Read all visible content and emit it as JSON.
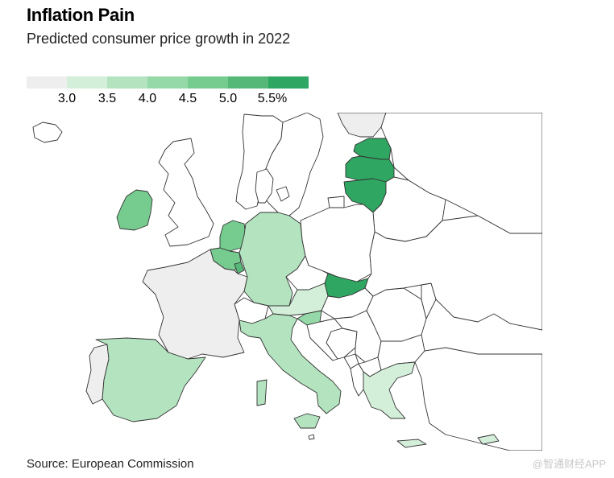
{
  "header": {
    "title": "Inflation Pain",
    "subtitle": "Predicted consumer price growth in 2022"
  },
  "legend": {
    "bins": [
      {
        "color": "#eeeeee",
        "label": ""
      },
      {
        "color": "#d3eed9",
        "label": "3.0"
      },
      {
        "color": "#b3e3bf",
        "label": "3.5"
      },
      {
        "color": "#96d9a8",
        "label": "4.0"
      },
      {
        "color": "#76cb8f",
        "label": "4.5"
      },
      {
        "color": "#56b878",
        "label": "5.0"
      },
      {
        "color": "#2fa661",
        "label": "5.5%"
      }
    ]
  },
  "map": {
    "no_data_color": "#ffffff",
    "countries": [
      {
        "name": "Iceland",
        "bin": null
      },
      {
        "name": "Norway",
        "bin": null
      },
      {
        "name": "Sweden",
        "bin": null
      },
      {
        "name": "Finland",
        "bin": 0
      },
      {
        "name": "Estonia",
        "bin": 6
      },
      {
        "name": "Latvia",
        "bin": 6
      },
      {
        "name": "Lithuania",
        "bin": 6
      },
      {
        "name": "United Kingdom",
        "bin": null
      },
      {
        "name": "Ireland",
        "bin": 4
      },
      {
        "name": "Netherlands",
        "bin": 4
      },
      {
        "name": "Belgium",
        "bin": 4
      },
      {
        "name": "Luxembourg",
        "bin": 5
      },
      {
        "name": "France",
        "bin": 0
      },
      {
        "name": "Germany",
        "bin": 2
      },
      {
        "name": "Denmark",
        "bin": null
      },
      {
        "name": "Poland",
        "bin": null
      },
      {
        "name": "Czechia",
        "bin": null
      },
      {
        "name": "Slovakia",
        "bin": 6
      },
      {
        "name": "Austria",
        "bin": 1
      },
      {
        "name": "Switzerland",
        "bin": null
      },
      {
        "name": "Hungary",
        "bin": null
      },
      {
        "name": "Slovenia",
        "bin": 3
      },
      {
        "name": "Croatia",
        "bin": null
      },
      {
        "name": "Italy",
        "bin": 2
      },
      {
        "name": "Spain",
        "bin": 2
      },
      {
        "name": "Portugal",
        "bin": 0
      },
      {
        "name": "Romania",
        "bin": null
      },
      {
        "name": "Bulgaria",
        "bin": null
      },
      {
        "name": "Greece",
        "bin": 1
      },
      {
        "name": "Cyprus",
        "bin": 1
      },
      {
        "name": "Malta",
        "bin": null
      },
      {
        "name": "Belarus",
        "bin": null
      },
      {
        "name": "Ukraine",
        "bin": null
      },
      {
        "name": "Moldova",
        "bin": null
      },
      {
        "name": "Serbia",
        "bin": null
      },
      {
        "name": "Bosnia and Herzegovina",
        "bin": null
      },
      {
        "name": "Montenegro",
        "bin": null
      },
      {
        "name": "North Macedonia",
        "bin": null
      },
      {
        "name": "Albania",
        "bin": null
      },
      {
        "name": "Turkey",
        "bin": null
      },
      {
        "name": "Russia",
        "bin": null
      }
    ]
  },
  "footer": {
    "source": "Source: European Commission",
    "watermark": "@智通财经APP"
  }
}
